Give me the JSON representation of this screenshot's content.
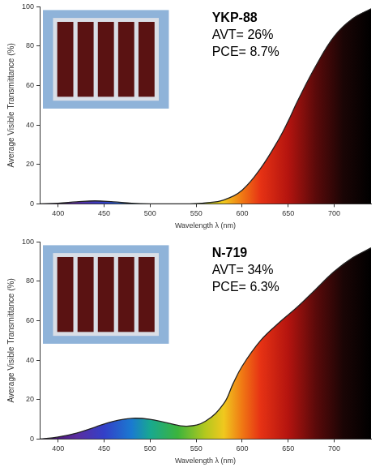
{
  "chart_data": [
    {
      "type": "line",
      "x_label": "Wavelength λ (nm)",
      "y_label": "Average Visible Transmittance (%)",
      "annotations": [
        "YKP-88",
        "AVT= 26%",
        "PCE= 8.7%"
      ],
      "x": [
        380,
        400,
        420,
        440,
        460,
        480,
        500,
        520,
        540,
        560,
        580,
        600,
        620,
        640,
        650,
        660,
        680,
        700,
        720,
        740
      ],
      "values": [
        0,
        0.3,
        1,
        1.5,
        1,
        0.3,
        0,
        0,
        0,
        0.5,
        2,
        7,
        18,
        33,
        42,
        52,
        70,
        85,
        94,
        99
      ],
      "color": "#222222",
      "xlim": [
        380,
        740
      ],
      "xticks": [
        400,
        450,
        500,
        550,
        600,
        650,
        700
      ],
      "ylim": [
        0,
        100
      ],
      "yticks": [
        0,
        20,
        40,
        60,
        80,
        100
      ],
      "grid": false
    },
    {
      "type": "line",
      "x_label": "Wavelength λ (nm)",
      "y_label": "Average Visible Transmittance (%)",
      "annotations": [
        "N-719",
        "AVT= 34%",
        "PCE= 6.3%"
      ],
      "x": [
        380,
        400,
        420,
        440,
        460,
        480,
        500,
        520,
        540,
        560,
        580,
        590,
        600,
        620,
        640,
        660,
        680,
        700,
        720,
        740
      ],
      "values": [
        0,
        1,
        3,
        6,
        9,
        10.5,
        10,
        8,
        6.5,
        9,
        18,
        28,
        37,
        50,
        59,
        67,
        76,
        85,
        92,
        97
      ],
      "color": "#222222",
      "xlim": [
        380,
        740
      ],
      "xticks": [
        400,
        450,
        500,
        550,
        600,
        650,
        700
      ],
      "ylim": [
        0,
        100
      ],
      "yticks": [
        0,
        20,
        40,
        60,
        80,
        100
      ],
      "grid": false
    }
  ]
}
